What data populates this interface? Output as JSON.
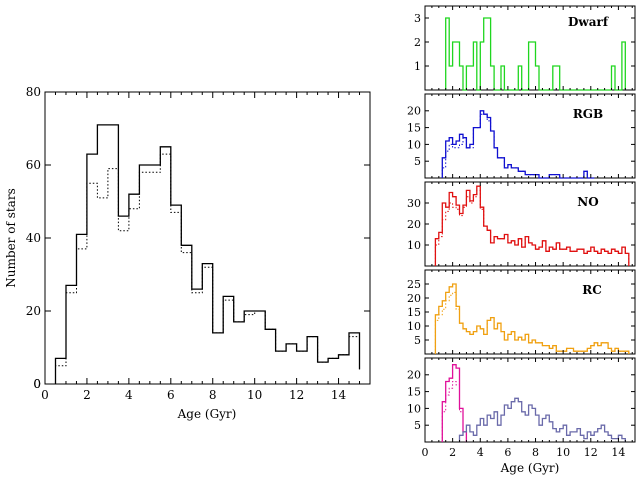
{
  "chart_data": [
    {
      "type": "histogram",
      "id": "main",
      "xlabel": "Age (Gyr)",
      "ylabel": "Number of stars",
      "xlim": [
        0,
        15.5
      ],
      "ylim": [
        0,
        80
      ],
      "xticks": [
        0,
        2,
        4,
        6,
        8,
        10,
        12,
        14
      ],
      "yticks": [
        0,
        20,
        40,
        60,
        80
      ],
      "bin_edges": [
        0.5,
        1.0,
        1.5,
        2.0,
        2.5,
        3.0,
        3.5,
        4.0,
        4.5,
        5.0,
        5.5,
        6.0,
        6.5,
        7.0,
        7.5,
        8.0,
        8.5,
        9.0,
        9.5,
        10.0,
        10.5,
        11.0,
        11.5,
        12.0,
        12.5,
        13.0,
        13.5,
        14.0,
        14.5,
        15.0
      ],
      "series": [
        {
          "style": "solid",
          "values": [
            7,
            27,
            41,
            63,
            71,
            71,
            46,
            52,
            60,
            60,
            65,
            49,
            38,
            26,
            33,
            14,
            24,
            17,
            20,
            20,
            15,
            9,
            11,
            9,
            13,
            6,
            7,
            8,
            14,
            4
          ]
        },
        {
          "style": "dotted",
          "values": [
            5,
            25,
            37,
            55,
            51,
            59,
            42,
            48,
            58,
            58,
            63,
            47,
            36,
            25,
            32,
            14,
            23,
            17,
            19,
            20,
            15,
            9,
            11,
            9,
            13,
            6,
            7,
            8,
            13,
            4
          ]
        }
      ]
    },
    {
      "type": "histogram",
      "id": "dwarf",
      "label": "Dwarf",
      "color": "#1fd61f",
      "xlim": [
        0,
        15.2
      ],
      "ylim": [
        0,
        3.5
      ],
      "yticks": [
        1,
        2,
        3
      ],
      "bin_edges": [
        1.5,
        1.75,
        2.0,
        2.25,
        2.5,
        2.75,
        3.0,
        3.25,
        3.5,
        3.75,
        4.0,
        4.25,
        4.5,
        4.75,
        5.0,
        5.25,
        5.5,
        5.75,
        6.0,
        6.25,
        6.5,
        6.75,
        7.0,
        7.25,
        7.5,
        7.75,
        8.0,
        8.25,
        8.5,
        8.75,
        9.0,
        9.25,
        9.5,
        9.75,
        10.0,
        10.25,
        10.5,
        10.75,
        11.0,
        11.25,
        11.5,
        11.75,
        12.0,
        12.25,
        12.5,
        12.75,
        13.0,
        13.25,
        13.5,
        13.75,
        14.0,
        14.25,
        14.5
      ],
      "series": [
        {
          "style": "solid",
          "values": [
            3,
            1,
            2,
            2,
            1,
            0,
            1,
            1,
            2,
            0,
            2,
            3,
            3,
            1,
            0,
            0,
            1,
            0,
            0,
            0,
            0,
            1,
            0,
            0,
            2,
            2,
            1,
            0,
            0,
            0,
            0,
            1,
            1,
            0,
            0,
            0,
            0,
            0,
            0,
            0,
            0,
            0,
            0,
            0,
            0,
            0,
            0,
            0,
            1,
            0,
            0,
            2
          ]
        }
      ]
    },
    {
      "type": "histogram",
      "id": "rgb",
      "label": "RGB",
      "color": "#1010d0",
      "xlim": [
        0,
        15.2
      ],
      "ylim": [
        0,
        25
      ],
      "yticks": [
        5,
        10,
        15,
        20
      ],
      "bin_edges": [
        1.25,
        1.5,
        1.75,
        2.0,
        2.25,
        2.5,
        2.75,
        3.0,
        3.25,
        3.5,
        3.75,
        4.0,
        4.25,
        4.5,
        4.75,
        5.0,
        5.25,
        5.5,
        5.75,
        6.0,
        6.25,
        6.5,
        6.75,
        7.0,
        7.25,
        7.5,
        7.75,
        8.0,
        8.25,
        8.5,
        8.75,
        9.0,
        9.25,
        9.5,
        9.75,
        10.0,
        10.25,
        10.5,
        10.75,
        11.0,
        11.25,
        11.5,
        11.75,
        12.0,
        12.25
      ],
      "series": [
        {
          "style": "solid",
          "values": [
            6,
            11,
            12,
            10,
            11,
            13,
            12,
            9,
            10,
            15,
            15,
            20,
            19,
            18,
            14,
            9,
            6,
            6,
            3,
            4,
            3,
            3,
            2,
            2,
            1,
            1,
            1,
            1,
            0,
            0,
            0,
            1,
            1,
            1,
            0,
            0,
            0,
            0,
            0,
            0,
            0,
            2,
            0,
            0
          ]
        },
        {
          "style": "dotted",
          "values": [
            3,
            8,
            10,
            9,
            9,
            10,
            12,
            9,
            9,
            15,
            15,
            19,
            19,
            17,
            14,
            9,
            6,
            6,
            3,
            4,
            3,
            3,
            2,
            2,
            1,
            1,
            1,
            1,
            0,
            0,
            0,
            1,
            1,
            1,
            0,
            0,
            0,
            0,
            0,
            0,
            0,
            2,
            0,
            0
          ]
        }
      ]
    },
    {
      "type": "histogram",
      "id": "no",
      "label": "NO",
      "color": "#e01010",
      "xlim": [
        0,
        15.2
      ],
      "ylim": [
        0,
        40
      ],
      "yticks": [
        10,
        20,
        30
      ],
      "bin_edges": [
        0.75,
        1.0,
        1.25,
        1.5,
        1.75,
        2.0,
        2.25,
        2.5,
        2.75,
        3.0,
        3.25,
        3.5,
        3.75,
        4.0,
        4.25,
        4.5,
        4.75,
        5.0,
        5.25,
        5.5,
        5.75,
        6.0,
        6.25,
        6.5,
        6.75,
        7.0,
        7.25,
        7.5,
        7.75,
        8.0,
        8.25,
        8.5,
        8.75,
        9.0,
        9.25,
        9.5,
        9.75,
        10.0,
        10.25,
        10.5,
        10.75,
        11.0,
        11.25,
        11.5,
        11.75,
        12.0,
        12.25,
        12.5,
        12.75,
        13.0,
        13.25,
        13.5,
        13.75,
        14.0,
        14.25,
        14.5,
        14.75
      ],
      "series": [
        {
          "style": "solid",
          "values": [
            13,
            16,
            30,
            28,
            35,
            33,
            29,
            25,
            29,
            36,
            31,
            34,
            38,
            28,
            19,
            17,
            11,
            14,
            13,
            13,
            15,
            11,
            12,
            10,
            13,
            9,
            14,
            11,
            10,
            8,
            9,
            12,
            7,
            9,
            8,
            11,
            8,
            8,
            9,
            7,
            7,
            8,
            8,
            6,
            7,
            9,
            7,
            6,
            8,
            7,
            6,
            8,
            7,
            6,
            9,
            6
          ]
        },
        {
          "style": "dotted",
          "values": [
            10,
            14,
            22,
            26,
            30,
            28,
            27,
            24,
            28,
            33,
            30,
            33,
            36,
            27,
            19,
            17,
            11,
            14,
            13,
            13,
            15,
            11,
            12,
            10,
            13,
            9,
            14,
            11,
            10,
            8,
            9,
            12,
            7,
            9,
            8,
            11,
            8,
            8,
            9,
            7,
            7,
            8,
            8,
            6,
            7,
            9,
            7,
            6,
            8,
            7,
            6,
            8,
            7,
            6,
            9,
            6
          ]
        }
      ]
    },
    {
      "type": "histogram",
      "id": "rc",
      "label": "RC",
      "color": "#f0a010",
      "xlim": [
        0,
        15.2
      ],
      "ylim": [
        0,
        30
      ],
      "yticks": [
        5,
        10,
        15,
        20,
        25
      ],
      "bin_edges": [
        0.75,
        1.0,
        1.25,
        1.5,
        1.75,
        2.0,
        2.25,
        2.5,
        2.75,
        3.0,
        3.25,
        3.5,
        3.75,
        4.0,
        4.25,
        4.5,
        4.75,
        5.0,
        5.25,
        5.5,
        5.75,
        6.0,
        6.25,
        6.5,
        6.75,
        7.0,
        7.25,
        7.5,
        7.75,
        8.0,
        8.25,
        8.5,
        8.75,
        9.0,
        9.25,
        9.5,
        9.75,
        10.0,
        10.25,
        10.5,
        10.75,
        11.0,
        11.25,
        11.5,
        11.75,
        12.0,
        12.25,
        12.5,
        12.75,
        13.0,
        13.25,
        13.5,
        13.75,
        14.0,
        14.25,
        14.5,
        14.75
      ],
      "series": [
        {
          "style": "solid",
          "values": [
            14,
            17,
            19,
            22,
            24,
            25,
            17,
            11,
            9,
            8,
            7,
            8,
            10,
            9,
            7,
            12,
            13,
            9,
            11,
            8,
            5,
            7,
            8,
            5,
            6,
            5,
            7,
            4,
            5,
            4,
            4,
            3,
            3,
            2,
            3,
            1,
            1,
            1,
            2,
            2,
            1,
            1,
            1,
            1,
            2,
            3,
            4,
            3,
            4,
            4,
            2,
            1,
            2,
            1,
            1,
            1
          ]
        },
        {
          "style": "dotted",
          "values": [
            12,
            14,
            16,
            19,
            21,
            22,
            16,
            11,
            9,
            8,
            7,
            8,
            10,
            9,
            7,
            12,
            13,
            9,
            11,
            8,
            5,
            7,
            8,
            5,
            6,
            5,
            7,
            4,
            5,
            4,
            4,
            3,
            3,
            2,
            3,
            1,
            1,
            1,
            2,
            2,
            1,
            1,
            1,
            1,
            2,
            3,
            4,
            3,
            4,
            4,
            2,
            1,
            2,
            1,
            1,
            1
          ]
        }
      ]
    },
    {
      "type": "histogram",
      "id": "split",
      "xlabel": "Age (Gyr)",
      "xlim": [
        0,
        15.2
      ],
      "ylim": [
        0,
        25
      ],
      "xticks": [
        0,
        2,
        4,
        6,
        8,
        10,
        12,
        14
      ],
      "yticks": [
        5,
        10,
        15,
        20
      ],
      "bin_edges_young": [
        1.25,
        1.5,
        1.75,
        2.0,
        2.25,
        2.5,
        2.75,
        3.0
      ],
      "bin_edges_old": [
        2.5,
        2.75,
        3.0,
        3.25,
        3.5,
        3.75,
        4.0,
        4.25,
        4.5,
        4.75,
        5.0,
        5.25,
        5.5,
        5.75,
        6.0,
        6.25,
        6.5,
        6.75,
        7.0,
        7.25,
        7.5,
        7.75,
        8.0,
        8.25,
        8.5,
        8.75,
        9.0,
        9.25,
        9.5,
        9.75,
        10.0,
        10.25,
        10.5,
        10.75,
        11.0,
        11.25,
        11.5,
        11.75,
        12.0,
        12.25,
        12.5,
        12.75,
        13.0,
        13.25,
        13.5,
        13.75,
        14.0,
        14.25,
        14.5
      ],
      "series": [
        {
          "style": "solid",
          "color": "#e0109a",
          "group": "young",
          "values": [
            12,
            18,
            19,
            23,
            22,
            10,
            3
          ]
        },
        {
          "style": "dotted",
          "color": "#e0109a",
          "group": "young",
          "values": [
            9,
            14,
            16,
            18,
            17,
            9,
            3
          ]
        },
        {
          "style": "solid",
          "color": "#6a6aaa",
          "group": "old",
          "values": [
            2,
            3,
            5,
            3,
            2,
            5,
            7,
            5,
            8,
            7,
            9,
            5,
            8,
            11,
            10,
            12,
            13,
            12,
            9,
            8,
            11,
            10,
            8,
            5,
            7,
            8,
            6,
            4,
            3,
            4,
            5,
            2,
            3,
            3,
            4,
            2,
            1,
            3,
            2,
            3,
            4,
            5,
            3,
            2,
            1,
            1,
            2,
            1
          ]
        }
      ]
    }
  ]
}
